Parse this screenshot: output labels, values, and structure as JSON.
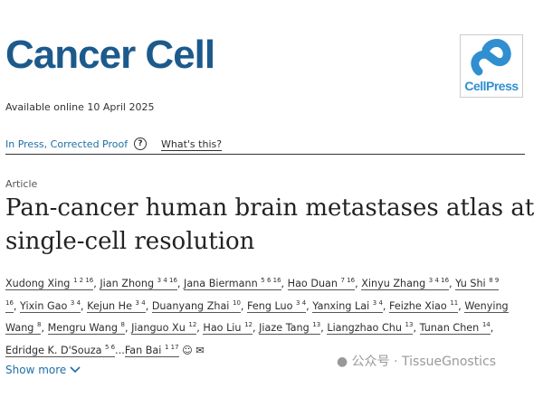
{
  "journal": "Cancer Cell",
  "publisher_logo": "CellPress",
  "available": "Available online 10 April 2025",
  "status": "In Press, Corrected Proof",
  "help_icon": "?",
  "whats_this": "What's this?",
  "article_type": "Article",
  "title": "Pan-cancer human brain metastases atlas at single-cell resolution",
  "authors": [
    {
      "name": "Xudong Xing",
      "aff": "1 2 16"
    },
    {
      "name": "Jian Zhong",
      "aff": "3 4 16"
    },
    {
      "name": "Jana Biermann",
      "aff": "5 6 16"
    },
    {
      "name": "Hao Duan",
      "aff": "7 16"
    },
    {
      "name": "Xinyu Zhang",
      "aff": "3 4 16"
    },
    {
      "name": "Yu Shi",
      "aff": "8 9 16"
    },
    {
      "name": "Yixin Gao",
      "aff": "3 4"
    },
    {
      "name": "Kejun He",
      "aff": "3 4"
    },
    {
      "name": "Duanyang Zhai",
      "aff": "10"
    },
    {
      "name": "Feng Luo",
      "aff": "3 4"
    },
    {
      "name": "Yanxing Lai",
      "aff": "3 4"
    },
    {
      "name": "Feizhe Xiao",
      "aff": "11"
    },
    {
      "name": "Wenying Wang",
      "aff": "8"
    },
    {
      "name": "Mengru Wang",
      "aff": "8"
    },
    {
      "name": "Jianguo Xu",
      "aff": "12"
    },
    {
      "name": "Hao Liu",
      "aff": "12"
    },
    {
      "name": "Jiaze Tang",
      "aff": "13"
    },
    {
      "name": "Liangzhao Chu",
      "aff": "13"
    },
    {
      "name": "Tunan Chen",
      "aff": "14"
    },
    {
      "name": "Edridge K. D'Souza",
      "aff": "5 6"
    },
    {
      "name": "Fan Bai",
      "aff": "1 17"
    }
  ],
  "ellipsis": "...",
  "show_more": "Show more",
  "watermark": "公众号 · TissueGnostics",
  "colors": {
    "brand": "#1c5a8c",
    "link": "#1f6fa8",
    "logo": "#2f8fd0"
  }
}
